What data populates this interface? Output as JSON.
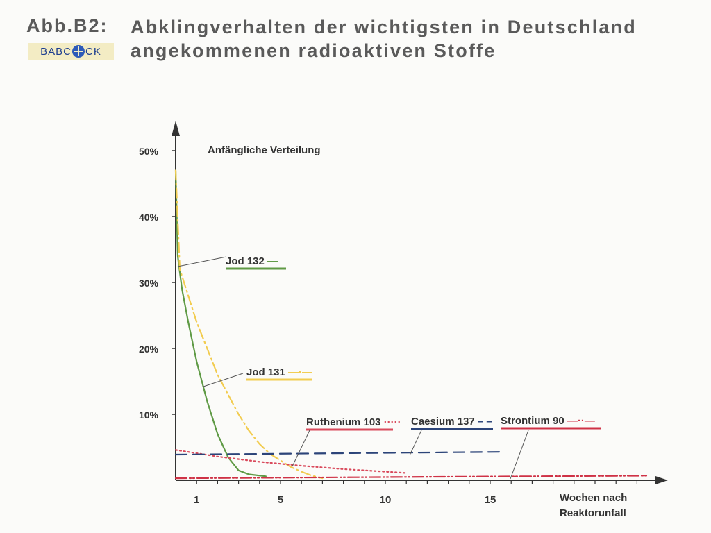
{
  "header": {
    "figure_label": "Abb.B2:",
    "title": "Abklingverhalten der wichtigsten in Deutschland angekommenen radioaktiven Stoffe",
    "logo_text": "BABCOCK"
  },
  "colors": {
    "axis": "#333333",
    "jod132": "#5f9a45",
    "jod131": "#f2cc50",
    "ruthenium103": "#d94a5c",
    "caesium137": "#2c4479",
    "strontium90": "#cf3246"
  },
  "chart_data": {
    "type": "line",
    "xlabel": "Wochen nach Reaktorunfall",
    "ylabel": "",
    "xlim": [
      0,
      23
    ],
    "ylim": [
      0,
      54
    ],
    "y_ticks": [
      {
        "value": 10,
        "label": "10%"
      },
      {
        "value": 20,
        "label": "20%"
      },
      {
        "value": 30,
        "label": "30%"
      },
      {
        "value": 40,
        "label": "40%"
      },
      {
        "value": 50,
        "label": "50%"
      }
    ],
    "x_ticks": [
      {
        "value": 1,
        "label": "1"
      },
      {
        "value": 5,
        "label": "5"
      },
      {
        "value": 10,
        "label": "10"
      },
      {
        "value": 15,
        "label": "15"
      }
    ],
    "annotation": "Anfängliche Verteilung",
    "series": [
      {
        "key": "jod132",
        "name": "Jod 132",
        "symbol": "—",
        "dash": "solid",
        "color": "#5f9a45",
        "x": [
          0,
          0.1,
          0.3,
          0.6,
          1,
          1.5,
          2,
          2.5,
          3,
          3.5,
          4.3
        ],
        "y": [
          47,
          34,
          29,
          24,
          18,
          12,
          7,
          3.5,
          1.5,
          0.9,
          0.6
        ]
      },
      {
        "key": "jod131",
        "name": "Jod 131",
        "symbol": "—·—",
        "dash": "dashdot",
        "color": "#f2cc50",
        "x": [
          0,
          0.2,
          0.5,
          1,
          1.5,
          2,
          2.5,
          3,
          3.5,
          4,
          4.5,
          5,
          5.5,
          6,
          6.5,
          7
        ],
        "y": [
          47,
          32,
          29,
          24,
          20,
          16,
          13,
          10,
          7.5,
          5.5,
          4,
          3,
          2,
          1.3,
          0.7,
          0.3
        ]
      },
      {
        "key": "ruthenium103",
        "name": "Ruthenium 103",
        "symbol": "·····",
        "dash": "dotted",
        "color": "#d94a5c",
        "x": [
          0,
          2,
          4,
          6,
          8,
          10,
          11
        ],
        "y": [
          4.6,
          3.6,
          2.8,
          2.2,
          1.7,
          1.3,
          1.1
        ]
      },
      {
        "key": "caesium137",
        "name": "Caesium 137",
        "symbol": "– –",
        "dash": "dashed",
        "color": "#2c4479",
        "x": [
          0,
          15.7
        ],
        "y": [
          3.9,
          4.3
        ]
      },
      {
        "key": "strontium90",
        "name": "Strontium 90",
        "symbol": "—··—",
        "dash": "dashdotdot",
        "color": "#cf3246",
        "x": [
          0,
          22.5
        ],
        "y": [
          0.3,
          0.7
        ]
      }
    ]
  }
}
